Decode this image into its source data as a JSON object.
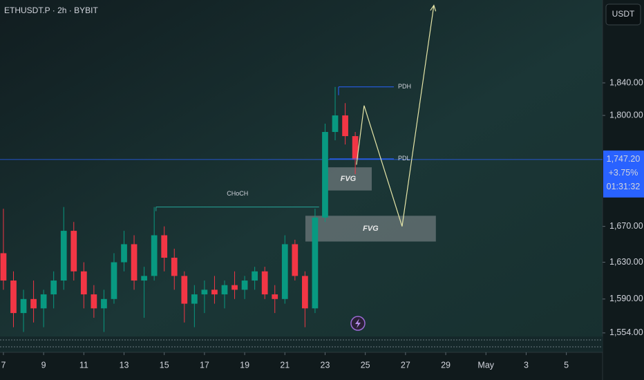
{
  "chart_data": {
    "type": "candlestick",
    "title": "ETHUSDT.P · 2h · BYBIT",
    "currency": "USDT",
    "log": true,
    "grid": false,
    "up_color": "#089981",
    "down_color": "#f23645",
    "ylim": [
      1551,
      1946
    ],
    "yticks": [
      {
        "value": 1554,
        "label": "1,554.00"
      },
      {
        "value": 1590,
        "label": "1,590.00"
      },
      {
        "value": 1630,
        "label": "1,630.00"
      },
      {
        "value": 1670,
        "label": "1,670.00"
      },
      {
        "value": 1800,
        "label": "1,800.00"
      },
      {
        "value": 1840,
        "label": "1,840.00"
      }
    ],
    "xlim": [
      -0.17,
      29.8
    ],
    "xticks": [
      {
        "value": 0,
        "label": "7"
      },
      {
        "value": 2,
        "label": "9"
      },
      {
        "value": 4,
        "label": "11"
      },
      {
        "value": 6,
        "label": "13"
      },
      {
        "value": 8,
        "label": "15"
      },
      {
        "value": 10,
        "label": "17"
      },
      {
        "value": 12,
        "label": "19"
      },
      {
        "value": 14,
        "label": "21"
      },
      {
        "value": 16,
        "label": "23"
      },
      {
        "value": 18,
        "label": "25"
      },
      {
        "value": 20,
        "label": "27"
      },
      {
        "value": 22,
        "label": "29"
      },
      {
        "value": 24,
        "label": "May"
      },
      {
        "value": 26,
        "label": "3"
      },
      {
        "value": 28,
        "label": "5"
      }
    ],
    "x": [
      0,
      0.5,
      1,
      1.5,
      2,
      2.5,
      3,
      3.5,
      4,
      4.5,
      5,
      5.5,
      6,
      6.5,
      7,
      7.5,
      8,
      8.5,
      9,
      9.5,
      10,
      10.5,
      11,
      11.5,
      12,
      12.5,
      13,
      13.5,
      14,
      14.5,
      15,
      15.5,
      16,
      16.5,
      17,
      17.5
    ],
    "open": [
      1640,
      1610,
      1575,
      1590,
      1580,
      1595,
      1610,
      1665,
      1620,
      1595,
      1580,
      1590,
      1630,
      1650,
      1610,
      1615,
      1660,
      1635,
      1615,
      1585,
      1595,
      1600,
      1595,
      1605,
      1600,
      1610,
      1620,
      1595,
      1590,
      1650,
      1615,
      1580,
      1680,
      1780,
      1800,
      1775
    ],
    "high": [
      1690,
      1620,
      1600,
      1610,
      1600,
      1620,
      1692,
      1675,
      1630,
      1605,
      1600,
      1640,
      1665,
      1660,
      1625,
      1692,
      1670,
      1645,
      1620,
      1605,
      1610,
      1615,
      1610,
      1620,
      1615,
      1625,
      1625,
      1605,
      1660,
      1655,
      1620,
      1690,
      1790,
      1835,
      1815,
      1780
    ],
    "low": [
      1600,
      1560,
      1555,
      1565,
      1560,
      1580,
      1600,
      1610,
      1580,
      1570,
      1555,
      1585,
      1620,
      1600,
      1570,
      1610,
      1620,
      1600,
      1565,
      1560,
      1575,
      1585,
      1580,
      1590,
      1590,
      1600,
      1590,
      1575,
      1585,
      1610,
      1560,
      1575,
      1675,
      1770,
      1765,
      1730
    ],
    "close": [
      1610,
      1575,
      1590,
      1580,
      1595,
      1610,
      1665,
      1620,
      1595,
      1580,
      1590,
      1630,
      1650,
      1610,
      1615,
      1660,
      1635,
      1615,
      1585,
      1595,
      1600,
      1595,
      1605,
      1600,
      1610,
      1620,
      1595,
      1590,
      1650,
      1615,
      1580,
      1680,
      1780,
      1800,
      1775,
      1747.2
    ],
    "last_price": {
      "value": 1747.2,
      "label": "1,747.20"
    },
    "change": "+3.75%",
    "countdown": "01:31:32",
    "annotations": {
      "pdh": {
        "label": "PDH",
        "value": 1835,
        "x": [
          16.67,
          19.42
        ]
      },
      "pdl": {
        "label": "PDL",
        "value": 1748,
        "x": [
          16.22,
          19.42
        ]
      },
      "choch": {
        "label": "CHoCH",
        "value": 1692,
        "x": [
          7.59,
          15.7
        ]
      },
      "fvg": [
        {
          "label": "FVG",
          "x": [
            15.98,
            18.32
          ],
          "y": [
            1711,
            1738
          ]
        },
        {
          "label": "FVG",
          "x": [
            15.02,
            21.51
          ],
          "y": [
            1653,
            1682
          ]
        }
      ],
      "projection": {
        "x": [
          17.56,
          17.94,
          19.83,
          21.41
        ],
        "y": [
          1741,
          1812,
          1670,
          1939
        ]
      }
    }
  }
}
